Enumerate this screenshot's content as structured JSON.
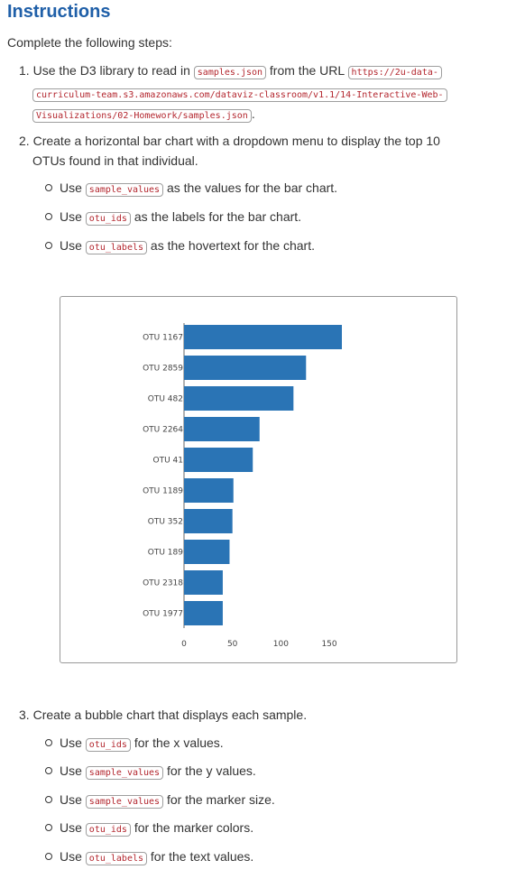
{
  "title": "Instructions",
  "intro": "Complete the following steps:",
  "step1": {
    "num": "1.",
    "text_a": "Use the D3 library to read in",
    "code_file": "samples.json",
    "text_b": "from the URL",
    "url_1": "https://2u-data-",
    "url_2": "curriculum-team.s3.amazonaws.com/dataviz-classroom/v1.1/14-Interactive-Web-",
    "url_3": "Visualizations/02-Homework/samples.json",
    "end": "."
  },
  "step2": {
    "num": "2.",
    "line1": "Create a horizontal bar chart with a dropdown menu to display the top 10",
    "line2": "OTUs found in that individual.",
    "bullets": [
      {
        "pre": "Use",
        "code": "sample_values",
        "post": "as the values for the bar chart."
      },
      {
        "pre": "Use",
        "code": "otu_ids",
        "post": "as the labels for the bar chart."
      },
      {
        "pre": "Use",
        "code": "otu_labels",
        "post": "as the hovertext for the chart."
      }
    ]
  },
  "step3": {
    "num": "3.",
    "line1": "Create a bubble chart that displays each sample.",
    "bullets": [
      {
        "pre": "Use",
        "code": "otu_ids",
        "post": "for the x values."
      },
      {
        "pre": "Use",
        "code": "sample_values",
        "post": "for the y values."
      },
      {
        "pre": "Use",
        "code": "sample_values",
        "post": "for the marker size."
      },
      {
        "pre": "Use",
        "code": "otu_ids",
        "post": "for the marker colors."
      },
      {
        "pre": "Use",
        "code": "otu_labels",
        "post": "for the text values."
      }
    ]
  },
  "chart_data": {
    "type": "bar",
    "orientation": "horizontal",
    "categories": [
      "OTU 1167",
      "OTU 2859",
      "OTU 482",
      "OTU 2264",
      "OTU 41",
      "OTU 1189",
      "OTU 352",
      "OTU 189",
      "OTU 2318",
      "OTU 1977"
    ],
    "values": [
      163,
      126,
      113,
      78,
      71,
      51,
      50,
      47,
      40,
      40
    ],
    "xticks": [
      0,
      50,
      100,
      150
    ],
    "xlim": [
      0,
      163
    ],
    "bar_color": "#2a74b5",
    "grid": false
  }
}
